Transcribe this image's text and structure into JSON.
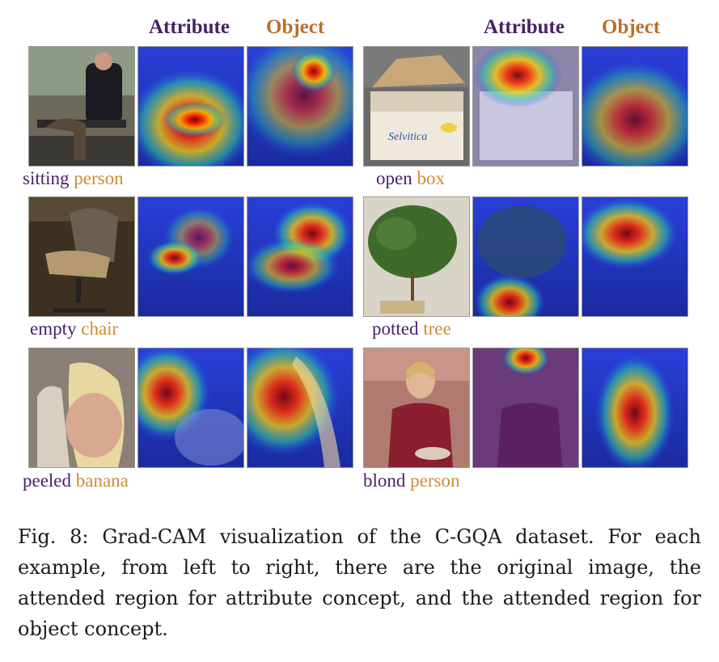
{
  "header": {
    "left_attribute": "Attribute",
    "left_object": "Object",
    "right_attribute": "Attribute",
    "right_object": "Object"
  },
  "examples": [
    {
      "attribute": "sitting",
      "object": "person"
    },
    {
      "attribute": "open",
      "object": "box"
    },
    {
      "attribute": "empty",
      "object": "chair"
    },
    {
      "attribute": "potted",
      "object": "tree"
    },
    {
      "attribute": "peeled",
      "object": "banana"
    },
    {
      "attribute": "blond",
      "object": "person"
    }
  ],
  "box_print": "Selvitica",
  "caption": "Fig. 8: Grad-CAM visualization of the C-GQA dataset. For each example, from left to right, there are the original image, the attended region for attribute concept, and the attended region for object concept."
}
